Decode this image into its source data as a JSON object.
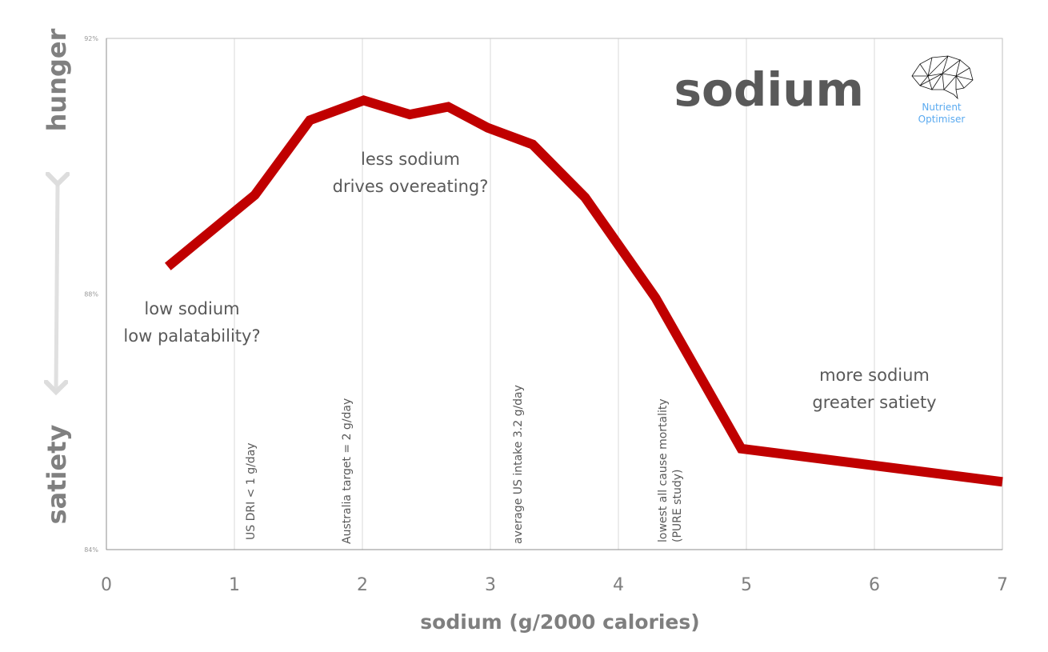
{
  "chart_data": {
    "type": "line",
    "title": "sodium",
    "xlabel": "sodium (g/2000 calories)",
    "ylabel_top": "hunger",
    "ylabel_bottom": "satiety",
    "xlim": [
      0,
      7
    ],
    "ylim": [
      84,
      92
    ],
    "x_ticks": [
      "0",
      "1",
      "2",
      "3",
      "4",
      "5",
      "6",
      "7"
    ],
    "y_ticks": [
      "84%",
      "88%",
      "92%"
    ],
    "grid": "vertical",
    "series": [
      {
        "name": "sodium",
        "color": "#c00000",
        "x": [
          0.48,
          1.16,
          1.59,
          2.01,
          2.37,
          2.67,
          2.98,
          3.33,
          3.74,
          4.29,
          4.96,
          7.0
        ],
        "y": [
          88.43,
          89.55,
          90.72,
          91.03,
          90.81,
          90.93,
          90.6,
          90.34,
          89.51,
          87.94,
          85.58,
          85.06
        ]
      }
    ],
    "annotations": [
      {
        "lines": [
          "low sodium",
          "low palatability?"
        ]
      },
      {
        "lines": [
          "less sodium",
          "drives overeating?"
        ]
      },
      {
        "lines": [
          "more sodium",
          "greater satiety"
        ]
      }
    ],
    "reference_lines": [
      {
        "lines": [
          "US DRI < 1 g/day"
        ]
      },
      {
        "lines": [
          "Australia target = 2 g/day"
        ]
      },
      {
        "lines": [
          "average US intake  3.2 g/day"
        ]
      },
      {
        "lines": [
          "lowest all cause mortality",
          "(PURE study)"
        ]
      }
    ]
  },
  "logo": {
    "line1": "Nutrient",
    "line2": "Optimiser",
    "color": "#5aaaf0"
  }
}
